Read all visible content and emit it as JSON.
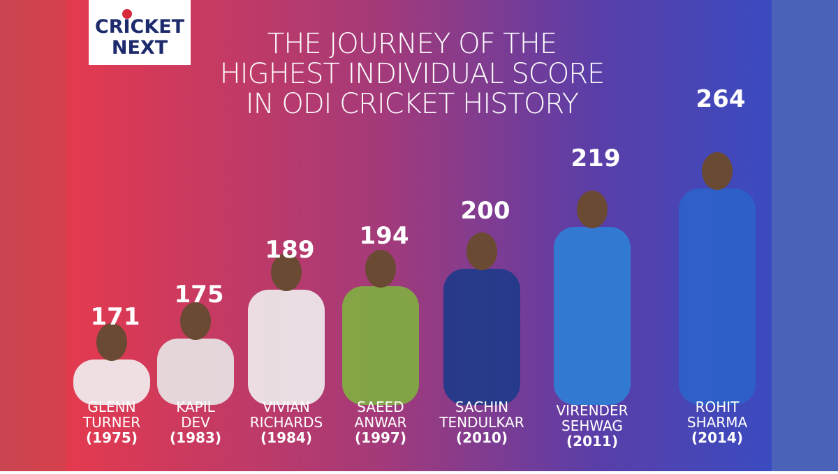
{
  "logo": {
    "line1": "CRICKET",
    "line2": "NEXT"
  },
  "title": {
    "lines": [
      "THE JOURNEY OF THE",
      "HIGHEST INDIVIDUAL SCORE",
      "IN ODI CRICKET HISTORY"
    ]
  },
  "players": [
    {
      "score": 171,
      "name": [
        "GLENN",
        "TURNER"
      ],
      "year": "(1975)"
    },
    {
      "score": 175,
      "name": [
        "KAPIL",
        "DEV"
      ],
      "year": "(1983)"
    },
    {
      "score": 189,
      "name": [
        "VIVIAN",
        "RICHARDS"
      ],
      "year": "(1984)"
    },
    {
      "score": 194,
      "name": [
        "SAEED",
        "ANWAR"
      ],
      "year": "(1997)"
    },
    {
      "score": 200,
      "name": [
        "SACHIN",
        "TENDULKAR"
      ],
      "year": "(2010)"
    },
    {
      "score": 219,
      "name": [
        "VIRENDER",
        "SEHWAG"
      ],
      "year": "(2011)"
    },
    {
      "score": 264,
      "name": [
        "ROHIT",
        "SHARMA"
      ],
      "year": "(2014)"
    }
  ]
}
